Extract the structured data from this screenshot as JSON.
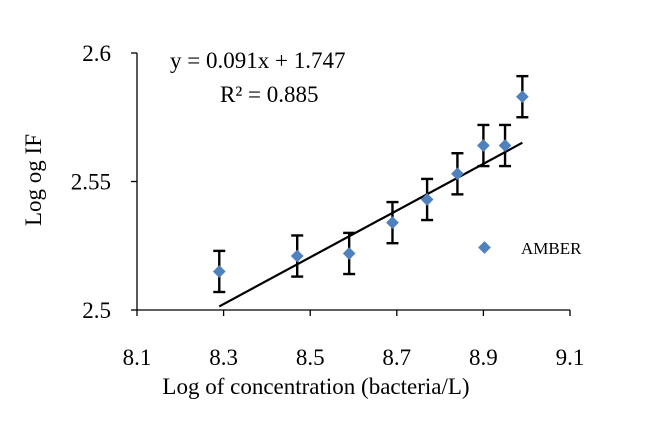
{
  "colors": {
    "marker": "#4f81bd",
    "error_bar": "#000000",
    "trendline": "#000000",
    "axis": "#000000"
  },
  "chart_data": {
    "type": "scatter",
    "xlabel": "Log of concentration (bacteria/L)",
    "ylabel": "Log og IF",
    "xlim": [
      8.1,
      9.1
    ],
    "ylim": [
      2.5,
      2.6
    ],
    "x_ticks": [
      "8.1",
      "8.3",
      "8.5",
      "8.7",
      "8.9",
      "9.1"
    ],
    "y_ticks": [
      "2.5",
      "2.55",
      "2.6"
    ],
    "grid": false,
    "legend_position": "right",
    "series": [
      {
        "name": "AMBER",
        "marker": "diamond",
        "x": [
          8.29,
          8.47,
          8.59,
          8.69,
          8.77,
          8.84,
          8.9,
          8.95,
          8.99
        ],
        "y": [
          2.515,
          2.521,
          2.522,
          2.534,
          2.543,
          2.553,
          2.564,
          2.564,
          2.583
        ],
        "error": [
          0.008,
          0.008,
          0.008,
          0.008,
          0.008,
          0.008,
          0.008,
          0.008,
          0.008
        ]
      }
    ],
    "trendline": {
      "slope": 0.091,
      "intercept": 1.747,
      "x_range": [
        8.29,
        8.99
      ],
      "equation": "y = 0.091x + 1.747",
      "r_squared": "R² = 0.885"
    }
  }
}
